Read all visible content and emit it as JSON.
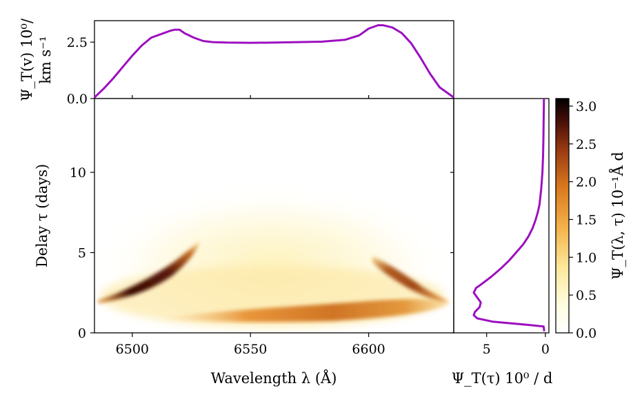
{
  "chart_data": [
    {
      "id": "top-velocity-profile",
      "type": "line",
      "ylabel_line1": "Ψ_T(v) 10⁰/",
      "ylabel_line2": "km s⁻¹",
      "xlim": [
        6484,
        6636
      ],
      "ylim": [
        0,
        3.45
      ],
      "yticks": [
        0.0,
        2.5
      ],
      "ytick_labels": [
        "0.0",
        "2.5"
      ],
      "color": "#9c0fbf",
      "x": [
        6484,
        6488,
        6492,
        6496,
        6500,
        6504,
        6508,
        6512,
        6516,
        6518,
        6520,
        6522,
        6526,
        6530,
        6534,
        6540,
        6550,
        6560,
        6570,
        6580,
        6590,
        6596,
        6600,
        6604,
        6606,
        6610,
        6614,
        6618,
        6622,
        6626,
        6630,
        6636
      ],
      "y": [
        0.05,
        0.45,
        0.9,
        1.4,
        1.9,
        2.35,
        2.7,
        2.85,
        3.0,
        3.05,
        3.05,
        2.9,
        2.7,
        2.55,
        2.5,
        2.48,
        2.47,
        2.48,
        2.5,
        2.52,
        2.6,
        2.8,
        3.1,
        3.25,
        3.25,
        3.15,
        2.9,
        2.45,
        1.8,
        1.1,
        0.5,
        0.05
      ]
    },
    {
      "id": "transfer-function-map",
      "type": "heatmap",
      "xlabel": "Wavelength λ (Å)",
      "ylabel": "Delay τ (days)",
      "xlim": [
        6484,
        6636
      ],
      "ylim": [
        0,
        14.6
      ],
      "xticks": [
        6500,
        6550,
        6600
      ],
      "xtick_labels": [
        "6500",
        "6550",
        "6600"
      ],
      "yticks": [
        0,
        5,
        10
      ],
      "ytick_labels": [
        "0",
        "5",
        "10"
      ],
      "colormap": "afmhot_r",
      "vmin": 0,
      "vmax": 3.1
    },
    {
      "id": "right-delay-profile",
      "type": "line",
      "xlabel": "Ψ_T(τ) 10⁰ / d",
      "xlim": [
        7.8,
        -0.3
      ],
      "ylim": [
        0,
        14.6
      ],
      "xticks": [
        5,
        0
      ],
      "xtick_labels": [
        "5",
        "0"
      ],
      "color": "#9c0fbf",
      "tau": [
        0.1,
        0.4,
        0.5,
        0.7,
        0.9,
        1.1,
        1.3,
        1.6,
        1.9,
        2.2,
        2.5,
        2.8,
        3.0,
        3.5,
        4.0,
        4.5,
        5.0,
        5.5,
        6.0,
        6.5,
        7.0,
        7.5,
        8.0,
        9.0,
        10.0,
        11.0,
        12.0,
        13.0,
        14.6
      ],
      "psi": [
        0.1,
        0.15,
        1.5,
        4.5,
        5.8,
        6.1,
        6.0,
        5.6,
        5.5,
        5.8,
        6.1,
        5.9,
        5.5,
        4.6,
        3.8,
        3.1,
        2.5,
        1.9,
        1.45,
        1.1,
        0.85,
        0.65,
        0.5,
        0.35,
        0.25,
        0.2,
        0.17,
        0.15,
        0.12
      ]
    },
    {
      "id": "colorbar",
      "type": "colorbar",
      "label": "Ψ_T(λ, τ) 10⁻¹Å d",
      "range": [
        0,
        3.1
      ],
      "ticks": [
        0.0,
        0.5,
        1.0,
        1.5,
        2.0,
        2.5,
        3.0
      ],
      "tick_labels": [
        "0.0",
        "0.5",
        "1.0",
        "1.5",
        "2.0",
        "2.5",
        "3.0"
      ]
    }
  ]
}
